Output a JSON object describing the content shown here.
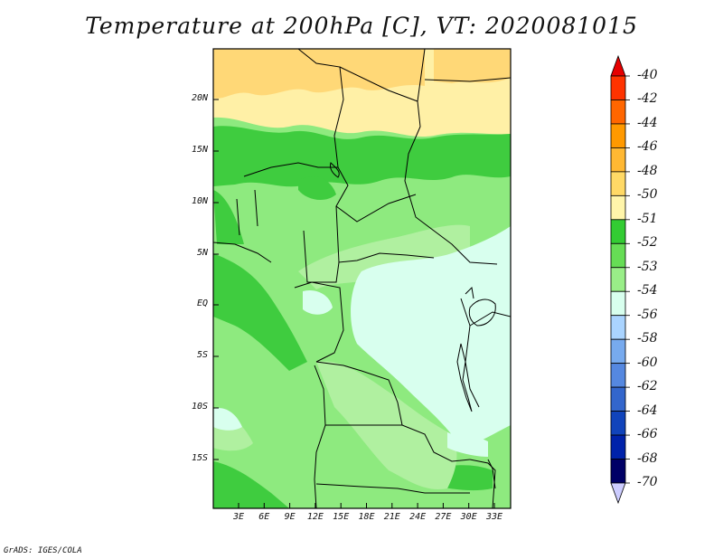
{
  "title": "Temperature at 200hPa [C], VT: 2020081015",
  "credit": "GrADS: IGES/COLA",
  "lat_labels": [
    "20N",
    "15N",
    "10N",
    "5N",
    "EQ",
    "5S",
    "10S",
    "15S"
  ],
  "lon_labels": [
    "3E",
    "6E",
    "9E",
    "12E",
    "15E",
    "18E",
    "21E",
    "24E",
    "27E",
    "30E",
    "33E"
  ],
  "colorbar": {
    "labels": [
      "-40",
      "-42",
      "-44",
      "-46",
      "-48",
      "-50",
      "-51",
      "-52",
      "-53",
      "-54",
      "-56",
      "-58",
      "-60",
      "-62",
      "-64",
      "-66",
      "-68",
      "-70"
    ],
    "colors": [
      "#e60000",
      "#ff3300",
      "#ff6600",
      "#ff9900",
      "#ffb833",
      "#ffd966",
      "#fff5aa",
      "#33cc33",
      "#66dd55",
      "#99ee88",
      "#d8ffee",
      "#aad4ff",
      "#77aaee",
      "#5588e0",
      "#3366cc",
      "#1144bb",
      "#0022aa",
      "#000066",
      "#ccccff"
    ]
  }
}
